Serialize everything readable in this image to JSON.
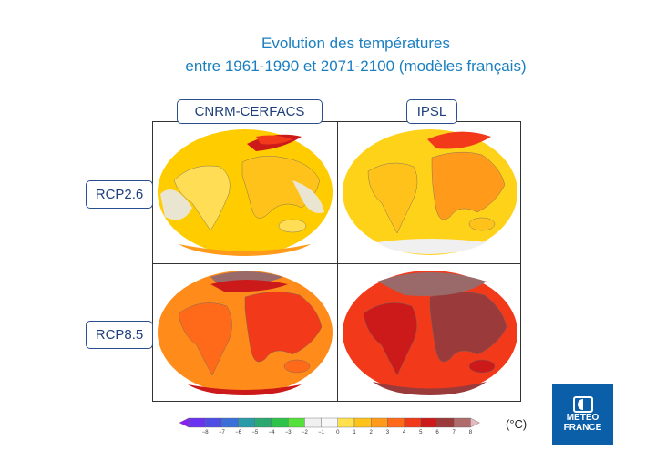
{
  "title_line1": "Evolution des températures",
  "title_line2": "entre 1961-1990 et 2071-2100 (modèles français)",
  "columns": [
    "CNRM-CERFACS",
    "IPSL"
  ],
  "rows": [
    "RCP2.6",
    "RCP8.5"
  ],
  "colorbar": {
    "ticks": [
      "−8",
      "−7",
      "−6",
      "−5",
      "−4",
      "−3",
      "−2",
      "−1",
      "0",
      "1",
      "2",
      "3",
      "4",
      "5",
      "6",
      "7",
      "8"
    ],
    "colors": [
      "#8a1ef5",
      "#6a33f0",
      "#4d4de6",
      "#3a6fd8",
      "#2a9aa8",
      "#2aa870",
      "#2ec24a",
      "#55e03a",
      "#f0f0f0",
      "#f8f8f8",
      "#ffe14d",
      "#ffc21a",
      "#ff9a1a",
      "#ff6a1a",
      "#f23a1a",
      "#cc1a1a",
      "#9a3a3a",
      "#b06b6b",
      "#e8b8c0"
    ],
    "unit": "(°C)"
  },
  "logo": {
    "line1": "METEO",
    "line2": "FRANCE"
  },
  "map_colors": {
    "rcp26_cnrm_ocean": "#ffcc00",
    "rcp26_ipsl_ocean": "#ffd21a",
    "rcp85_cnrm_ocean": "#ff8c1a",
    "rcp85_ipsl_ocean": "#f23a1a",
    "land_light": "#ffdd55",
    "land_mid": "#ff9a1a",
    "land_warm": "#ff6a1a",
    "land_hot": "#cc1a1a",
    "ice": "#e8e8e8",
    "extreme": "#9a6a6a"
  }
}
